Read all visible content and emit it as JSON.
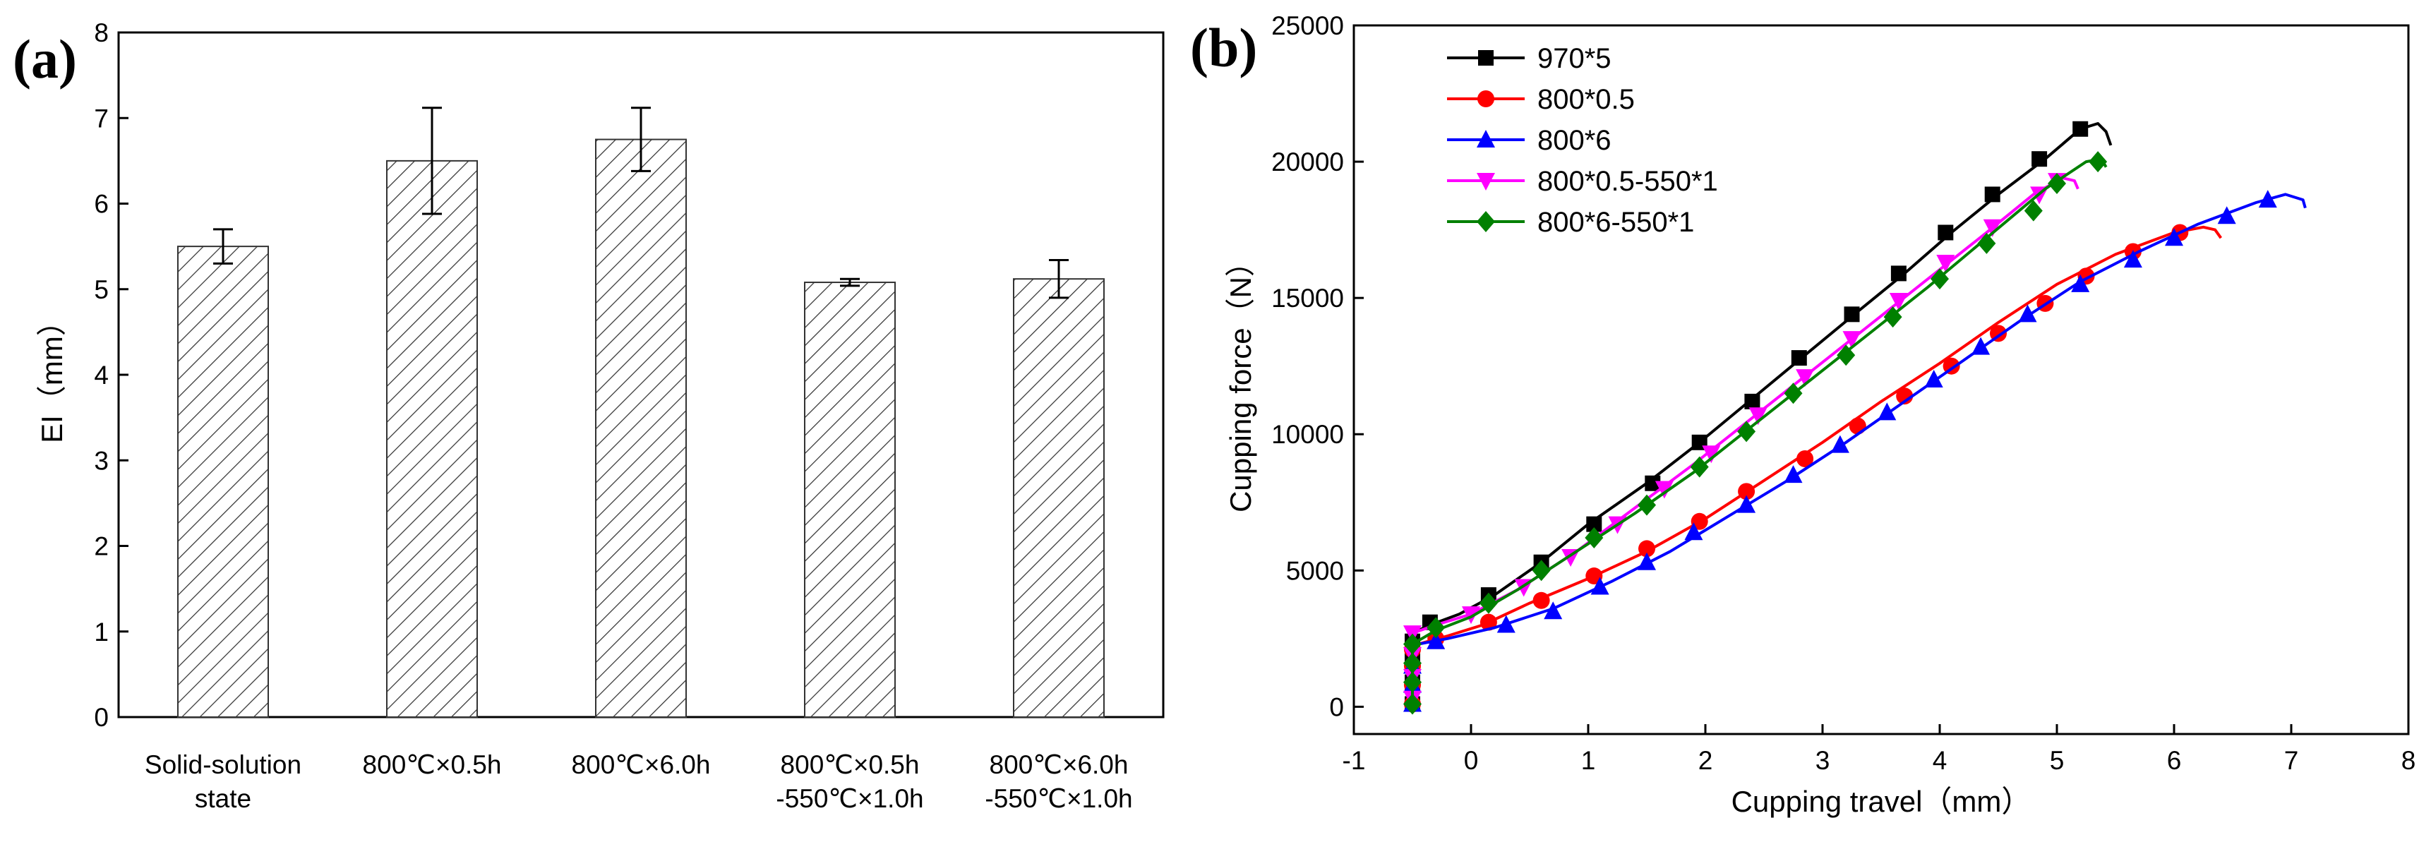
{
  "chart_data": [
    {
      "type": "bar",
      "panel_label": "(a)",
      "title": "",
      "xlabel": "",
      "ylabel": "EI（mm）",
      "ylim": [
        0,
        8
      ],
      "yticks": [
        0,
        1,
        2,
        3,
        4,
        5,
        6,
        7,
        8
      ],
      "categories": [
        [
          "Solid-solution",
          "state"
        ],
        [
          "800℃×0.5h"
        ],
        [
          "800℃×6.0h"
        ],
        [
          "800℃×0.5h",
          "-550℃×1.0h"
        ],
        [
          "800℃×6.0h",
          "-550℃×1.0h"
        ]
      ],
      "values": [
        5.5,
        6.5,
        6.75,
        5.08,
        5.12
      ],
      "error": [
        0.2,
        0.62,
        0.37,
        0.04,
        0.22
      ],
      "fill": "hatched",
      "grid": false
    },
    {
      "type": "line",
      "panel_label": "(b)",
      "title": "",
      "xlabel": "Cupping travel（mm）",
      "ylabel": "Cupping force（N）",
      "xlim": [
        -1,
        8
      ],
      "ylim": [
        -1000,
        25000
      ],
      "xticks": [
        -1,
        0,
        1,
        2,
        3,
        4,
        5,
        6,
        7,
        8
      ],
      "yticks": [
        0,
        5000,
        10000,
        15000,
        20000,
        25000
      ],
      "legend_position": "top-left",
      "grid": false,
      "series": [
        {
          "name": "970*5",
          "color": "#000000",
          "marker": "square",
          "x": [
            -0.5,
            -0.5,
            -0.5,
            -0.5,
            -0.5,
            -0.35,
            -0.1,
            0.2,
            0.6,
            1.0,
            1.5,
            1.95,
            2.4,
            2.85,
            3.3,
            3.7,
            4.1,
            4.5,
            4.9,
            5.2,
            5.35,
            5.42,
            5.46
          ],
          "y": [
            0,
            800,
            1600,
            2400,
            2700,
            3000,
            3400,
            4100,
            5300,
            6700,
            8200,
            9700,
            11300,
            12900,
            14500,
            15900,
            17400,
            18800,
            20100,
            21200,
            21400,
            21100,
            20600
          ],
          "marker_x": [
            -0.5,
            -0.5,
            -0.5,
            -0.5,
            -0.35,
            0.15,
            0.6,
            1.05,
            1.55,
            1.95,
            2.4,
            2.8,
            3.25,
            3.65,
            4.05,
            4.45,
            4.85,
            5.2
          ],
          "marker_y": [
            100,
            900,
            1700,
            2400,
            3100,
            4100,
            5300,
            6700,
            8200,
            9700,
            11200,
            12800,
            14400,
            15900,
            17400,
            18800,
            20100,
            21200
          ]
        },
        {
          "name": "800*0.5",
          "color": "#ff0000",
          "marker": "circle",
          "x": [
            -0.5,
            -0.5,
            -0.5,
            -0.5,
            -0.45,
            -0.2,
            0.1,
            0.5,
            1.0,
            1.5,
            2.0,
            2.5,
            3.0,
            3.5,
            4.0,
            4.5,
            5.0,
            5.5,
            6.0,
            6.25,
            6.35,
            6.4
          ],
          "y": [
            0,
            700,
            1400,
            2100,
            2300,
            2600,
            3000,
            3800,
            4700,
            5700,
            6900,
            8300,
            9700,
            11200,
            12600,
            14100,
            15500,
            16600,
            17400,
            17600,
            17500,
            17200
          ],
          "marker_x": [
            -0.5,
            -0.5,
            -0.5,
            -0.5,
            -0.3,
            0.15,
            0.6,
            1.05,
            1.5,
            1.95,
            2.35,
            2.85,
            3.3,
            3.7,
            4.1,
            4.5,
            4.9,
            5.25,
            5.65,
            6.05
          ],
          "marker_y": [
            100,
            800,
            1500,
            2100,
            2500,
            3100,
            3900,
            4800,
            5800,
            6800,
            7900,
            9100,
            10300,
            11400,
            12500,
            13700,
            14800,
            15800,
            16700,
            17400
          ]
        },
        {
          "name": "800*6",
          "color": "#0000ff",
          "marker": "triangle-up",
          "x": [
            -0.5,
            -0.5,
            -0.5,
            -0.45,
            -0.2,
            0.2,
            0.7,
            1.2,
            1.7,
            2.2,
            2.7,
            3.2,
            3.7,
            4.2,
            4.7,
            5.2,
            5.7,
            6.2,
            6.7,
            6.95,
            7.1,
            7.12
          ],
          "y": [
            0,
            700,
            1400,
            2300,
            2500,
            2900,
            3600,
            4600,
            5700,
            7000,
            8300,
            9700,
            11200,
            12700,
            14200,
            15600,
            16700,
            17700,
            18500,
            18800,
            18600,
            18300
          ],
          "marker_x": [
            -0.5,
            -0.5,
            -0.5,
            -0.3,
            0.3,
            0.7,
            1.1,
            1.5,
            1.9,
            2.35,
            2.75,
            3.15,
            3.55,
            3.95,
            4.35,
            4.75,
            5.2,
            5.65,
            6.0,
            6.45,
            6.8
          ],
          "marker_y": [
            100,
            800,
            1500,
            2400,
            3000,
            3500,
            4400,
            5300,
            6400,
            7400,
            8500,
            9600,
            10800,
            12000,
            13200,
            14400,
            15500,
            16400,
            17200,
            18000,
            18600
          ]
        },
        {
          "name": "800*0.5-550*1",
          "color": "#ff00ff",
          "marker": "triangle-down",
          "x": [
            -0.5,
            -0.5,
            -0.5,
            -0.5,
            -0.3,
            0.0,
            0.4,
            0.9,
            1.4,
            1.9,
            2.4,
            2.9,
            3.4,
            3.9,
            4.4,
            4.8,
            5.05,
            5.15,
            5.18
          ],
          "y": [
            0,
            900,
            1800,
            2700,
            3000,
            3400,
            4300,
            5700,
            7300,
            8900,
            10600,
            12300,
            14000,
            15700,
            17400,
            18800,
            19400,
            19300,
            19000
          ],
          "marker_x": [
            -0.5,
            -0.5,
            -0.5,
            -0.5,
            0.0,
            0.45,
            0.85,
            1.25,
            1.65,
            2.05,
            2.45,
            2.85,
            3.25,
            3.65,
            4.05,
            4.45,
            4.85,
            5.0
          ],
          "marker_y": [
            300,
            1100,
            1900,
            2700,
            3400,
            4400,
            5500,
            6700,
            8000,
            9300,
            10700,
            12100,
            13500,
            14900,
            16300,
            17600,
            18800,
            19300
          ]
        },
        {
          "name": "800*6-550*1",
          "color": "#008000",
          "marker": "diamond",
          "x": [
            -0.5,
            -0.5,
            -0.5,
            -0.5,
            -0.3,
            0.0,
            0.4,
            0.9,
            1.4,
            1.9,
            2.4,
            2.9,
            3.4,
            3.9,
            4.4,
            4.9,
            5.25,
            5.38,
            5.42
          ],
          "y": [
            0,
            800,
            1600,
            2300,
            2800,
            3300,
            4300,
            5700,
            7100,
            8600,
            10300,
            12000,
            13700,
            15400,
            17200,
            19000,
            20000,
            20100,
            19800
          ],
          "marker_x": [
            -0.5,
            -0.5,
            -0.5,
            -0.5,
            -0.3,
            0.15,
            0.6,
            1.05,
            1.5,
            1.95,
            2.35,
            2.75,
            3.2,
            3.6,
            4.0,
            4.4,
            4.8,
            5.0,
            5.35
          ],
          "marker_y": [
            100,
            900,
            1600,
            2300,
            2900,
            3800,
            5000,
            6200,
            7400,
            8800,
            10100,
            11500,
            12900,
            14300,
            15700,
            17000,
            18200,
            19200,
            20000
          ]
        }
      ]
    }
  ]
}
